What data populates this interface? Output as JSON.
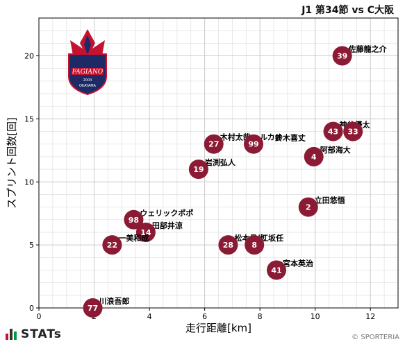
{
  "header": {
    "title": "J1 第34節 vs C大阪"
  },
  "footer": {
    "logo_text": "STATs",
    "copyright": "© SPORTERIA"
  },
  "badge": {
    "text1": "FAGIANO",
    "text2": "OKAYAMA",
    "year": "2004"
  },
  "colors": {
    "point": "#8b1a35",
    "grid": "#cccccc",
    "logo_red": "#c41230",
    "logo_green": "#009944",
    "logo_dark": "#333333"
  },
  "chart_data": {
    "type": "scatter",
    "title": "",
    "xlabel": "走行距離[km]",
    "ylabel": "スプリント回数[回]",
    "xlim": [
      0,
      13
    ],
    "ylim": [
      0,
      23
    ],
    "xticks": [
      0,
      2,
      4,
      6,
      8,
      10,
      12
    ],
    "yticks": [
      0,
      5,
      10,
      15,
      20
    ],
    "grid": true,
    "points": [
      {
        "number": "39",
        "name": "佐藤龍之介",
        "x": 10.98,
        "y": 20
      },
      {
        "number": "43",
        "name": "神谷優太",
        "x": 10.65,
        "y": 14
      },
      {
        "number": "33",
        "name": "",
        "x": 11.37,
        "y": 14
      },
      {
        "number": "27",
        "name": "木村太哉",
        "x": 6.33,
        "y": 13
      },
      {
        "number": "99",
        "name": "ルカオ",
        "x": 7.77,
        "y": 13
      },
      {
        "number": "4",
        "name": "阿部海大",
        "x": 9.95,
        "y": 12
      },
      {
        "number": "19",
        "name": "岩渕弘人",
        "x": 5.78,
        "y": 11
      },
      {
        "number": "2",
        "name": "立田悠悟",
        "x": 9.75,
        "y": 8
      },
      {
        "number": "98",
        "name": "ウェリックポポ",
        "x": 3.43,
        "y": 7
      },
      {
        "number": "14",
        "name": "田部井涼",
        "x": 3.87,
        "y": 6
      },
      {
        "number": "22",
        "name": "一美和成",
        "x": 2.65,
        "y": 5
      },
      {
        "number": "28",
        "name": "松本昌也",
        "x": 6.85,
        "y": 5
      },
      {
        "number": "8",
        "name": "江坂任",
        "x": 7.8,
        "y": 5
      },
      {
        "number": "41",
        "name": "宮本英治",
        "x": 8.6,
        "y": 3
      },
      {
        "number": "77",
        "name": "川浪吾郎",
        "x": 1.95,
        "y": 0
      }
    ],
    "extra_label": "鈴木喜丈"
  }
}
